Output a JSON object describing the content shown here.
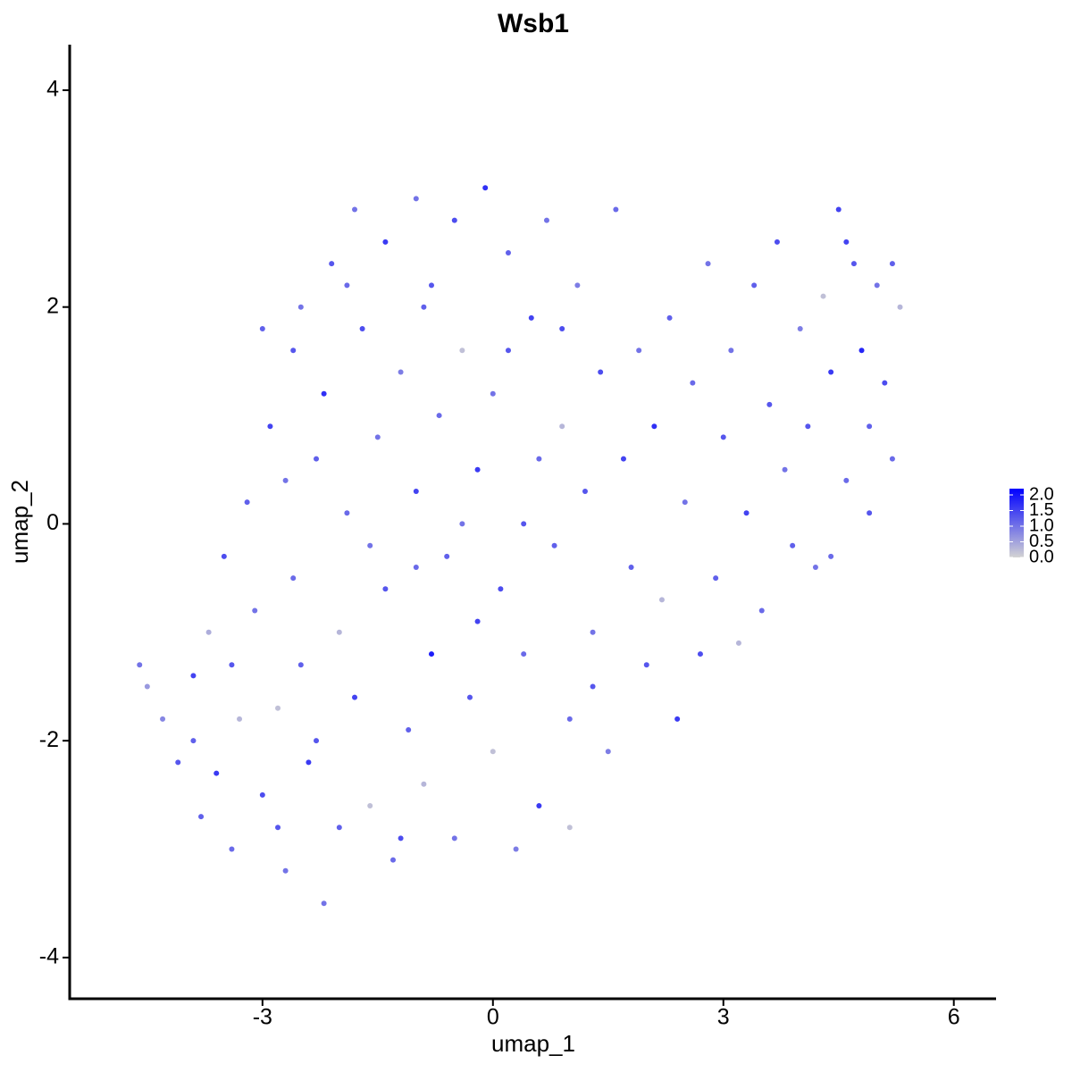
{
  "chart_data": {
    "type": "scatter",
    "title": "Wsb1",
    "x_label": "umap_1",
    "y_label": "umap_2",
    "xlim": [
      -5.51,
      6.55
    ],
    "ylim": [
      -4.38,
      4.42
    ],
    "xticks": [
      -3,
      0,
      3,
      6
    ],
    "yticks": [
      -4,
      -2,
      0,
      2,
      4
    ],
    "x": [
      -4.6,
      -4.5,
      -4.3,
      -4.1,
      -3.9,
      -3.8,
      -3.6,
      -3.5,
      -3.4,
      -3.3,
      -3.2,
      -3.1,
      -3.0,
      -2.9,
      -2.8,
      -2.7,
      -2.6,
      -2.6,
      -2.5,
      -2.4,
      -2.3,
      -2.2,
      -2.2,
      -2.1,
      -2.0,
      -2.0,
      -1.9,
      -1.8,
      -1.8,
      -1.7,
      -1.6,
      -1.5,
      -1.4,
      -1.4,
      -1.3,
      -1.2,
      -1.1,
      -1.0,
      -1.0,
      -0.9,
      -0.8,
      -0.8,
      -0.7,
      -0.6,
      -0.5,
      -0.5,
      -0.4,
      -0.3,
      -0.2,
      -0.1,
      0.0,
      0.0,
      0.1,
      0.2,
      0.3,
      0.4,
      0.4,
      0.5,
      0.6,
      0.7,
      0.8,
      0.9,
      1.0,
      1.0,
      1.1,
      1.2,
      1.3,
      1.4,
      1.5,
      1.6,
      1.7,
      1.8,
      1.9,
      2.0,
      2.1,
      2.2,
      2.3,
      2.4,
      2.5,
      2.6,
      2.7,
      2.8,
      2.9,
      3.0,
      3.1,
      3.2,
      3.3,
      3.4,
      3.5,
      3.6,
      3.7,
      3.8,
      3.9,
      4.0,
      4.1,
      4.2,
      4.3,
      4.4,
      4.5,
      4.6,
      4.7,
      4.8,
      4.9,
      5.0,
      5.1,
      5.2,
      5.3,
      5.2,
      4.9,
      4.6,
      4.4,
      -3.7,
      -3.0,
      -2.3,
      -1.6,
      -0.9,
      -0.2,
      0.6,
      1.3,
      -1.2,
      -2.8,
      -3.9,
      -2.5,
      -1.0,
      0.2,
      -0.4,
      0.9,
      -1.9,
      -2.7,
      -3.4
    ],
    "y": [
      -1.3,
      -1.5,
      -1.8,
      -2.2,
      -1.4,
      -2.7,
      -2.3,
      -0.3,
      -3.0,
      -1.8,
      0.2,
      -0.8,
      -2.5,
      0.9,
      -1.7,
      -3.2,
      1.6,
      -0.5,
      2.0,
      -2.2,
      0.6,
      -3.5,
      1.2,
      2.4,
      -1.0,
      -2.8,
      0.1,
      2.9,
      -1.6,
      1.8,
      -2.6,
      0.8,
      2.6,
      -0.6,
      -3.1,
      1.4,
      -1.9,
      3.0,
      0.3,
      -2.4,
      2.2,
      -1.2,
      1.0,
      -0.3,
      2.8,
      -2.9,
      1.6,
      -1.6,
      0.5,
      3.1,
      -2.1,
      1.2,
      -0.6,
      2.5,
      -3.0,
      0.0,
      -1.2,
      1.9,
      -2.6,
      2.8,
      -0.2,
      0.9,
      -1.8,
      -2.8,
      2.2,
      0.3,
      -1.0,
      1.4,
      -2.1,
      2.9,
      0.6,
      -0.4,
      1.6,
      -1.3,
      0.9,
      -0.7,
      1.9,
      -1.8,
      0.2,
      1.3,
      -1.2,
      2.4,
      -0.5,
      0.8,
      1.6,
      -1.1,
      0.1,
      2.2,
      -0.8,
      1.1,
      2.6,
      0.5,
      -0.2,
      1.8,
      0.9,
      -0.4,
      2.1,
      1.4,
      2.9,
      0.4,
      2.4,
      1.6,
      0.9,
      2.2,
      1.3,
      0.6,
      2.0,
      2.4,
      0.1,
      2.6,
      -0.3,
      -1.0,
      1.8,
      -2.0,
      -0.2,
      2.0,
      -0.9,
      0.6,
      -1.5,
      -2.9,
      -2.8,
      -2.0,
      -1.3,
      -0.4,
      1.6,
      0.0,
      1.8,
      2.2,
      0.4,
      -1.3
    ],
    "expression": [
      1.0,
      0.6,
      0.8,
      1.3,
      1.5,
      1.2,
      1.6,
      1.4,
      1.1,
      0.3,
      1.2,
      1.0,
      1.4,
      1.5,
      0.2,
      1.0,
      1.3,
      1.1,
      1.0,
      1.6,
      1.2,
      1.0,
      1.7,
      1.3,
      0.3,
      1.2,
      1.1,
      1.0,
      1.5,
      1.4,
      0.2,
      1.0,
      1.6,
      1.3,
      1.1,
      0.9,
      1.2,
      1.0,
      1.5,
      0.3,
      1.3,
      1.9,
      1.1,
      1.2,
      1.4,
      1.0,
      0.2,
      1.3,
      1.6,
      1.7,
      0.2,
      1.0,
      1.4,
      1.2,
      0.9,
      1.3,
      1.1,
      1.5,
      1.6,
      1.0,
      1.2,
      0.3,
      1.1,
      0.2,
      0.9,
      1.3,
      1.0,
      1.4,
      0.9,
      1.1,
      1.5,
      1.2,
      1.0,
      1.3,
      1.7,
      0.3,
      1.2,
      1.6,
      1.0,
      1.1,
      1.4,
      1.0,
      1.2,
      1.3,
      1.0,
      0.3,
      1.5,
      1.2,
      1.1,
      1.3,
      1.4,
      1.0,
      1.2,
      0.9,
      1.3,
      1.0,
      0.2,
      1.6,
      1.5,
      1.1,
      1.3,
      1.8,
      1.2,
      1.0,
      1.4,
      1.1,
      0.3,
      1.2,
      1.3,
      1.5,
      1.1,
      0.4,
      1.2,
      1.3,
      1.0,
      1.2,
      1.5,
      1.1,
      1.3,
      1.4,
      1.3,
      1.2,
      1.2,
      1.1,
      1.3,
      1.0,
      1.4,
      1.1,
      1.0,
      1.3
    ],
    "colorbar": {
      "lim": [
        0,
        2.2
      ],
      "low_color": "#d3d3d3",
      "high_color": "#0000ff",
      "ticks": [
        {
          "value": 0,
          "label": "0.0"
        },
        {
          "value": 0.5,
          "label": "0.5"
        },
        {
          "value": 1,
          "label": "1.0"
        },
        {
          "value": 1.5,
          "label": "1.5"
        },
        {
          "value": 2,
          "label": "2.0"
        }
      ]
    }
  }
}
